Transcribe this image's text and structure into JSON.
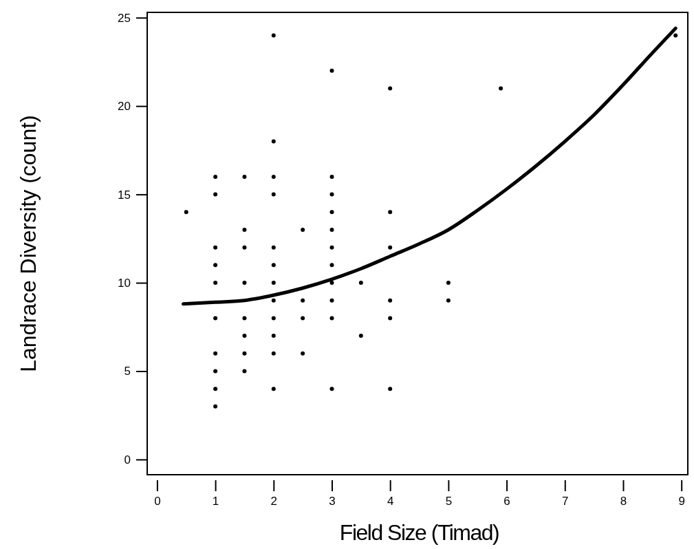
{
  "chart_data": {
    "type": "scatter",
    "xlabel": "Field Size (Timad)",
    "ylabel": "Landrace Diversity (count)",
    "xlim": [
      -0.17,
      9.11
    ],
    "ylim": [
      -0.86,
      25.3
    ],
    "xticks": [
      0,
      1,
      2,
      3,
      4,
      5,
      6,
      7,
      8,
      9
    ],
    "yticks": [
      0,
      5,
      10,
      15,
      20,
      25
    ],
    "marker": "circle",
    "grid": false,
    "series": [
      {
        "color": "#000000",
        "x": [
          0.5,
          1,
          1,
          1,
          1,
          1,
          1,
          1,
          1,
          1,
          1,
          1.5,
          1.5,
          1.5,
          1.5,
          1.5,
          1.5,
          1.5,
          1.5,
          2,
          2,
          2,
          2,
          2,
          2,
          2,
          2,
          2,
          2,
          2,
          2,
          2.5,
          2.5,
          2.5,
          2.5,
          3,
          3,
          3,
          3,
          3,
          3,
          3,
          3,
          3,
          3,
          3,
          3.5,
          3.5,
          4,
          4,
          4,
          4,
          4,
          4,
          5,
          5,
          5.9,
          8.9
        ],
        "values": [
          14,
          16,
          15,
          12,
          11,
          10,
          8,
          6,
          5,
          4,
          3,
          16,
          13,
          12,
          10,
          8,
          7,
          6,
          5,
          24,
          18,
          16,
          15,
          12,
          11,
          10,
          9,
          8,
          7,
          6,
          4,
          13,
          9,
          8,
          6,
          22,
          16,
          15,
          14,
          13,
          12,
          11,
          10,
          9,
          8,
          4,
          10,
          7,
          21,
          14,
          12,
          9,
          8,
          4,
          10,
          9,
          21,
          24
        ]
      },
      {
        "type": "line",
        "marker": "none",
        "color": "#000000",
        "x": [
          0.45,
          1,
          1.5,
          2,
          2.5,
          3,
          3.5,
          4,
          4.5,
          5,
          5.5,
          6,
          6.5,
          7,
          7.5,
          8,
          8.5,
          8.9
        ],
        "values": [
          8.8,
          8.9,
          9,
          9.3,
          9.7,
          10.2,
          10.8,
          11.5,
          12.2,
          13,
          14.1,
          15.3,
          16.6,
          18,
          19.5,
          21.2,
          23,
          24.4
        ]
      }
    ]
  }
}
